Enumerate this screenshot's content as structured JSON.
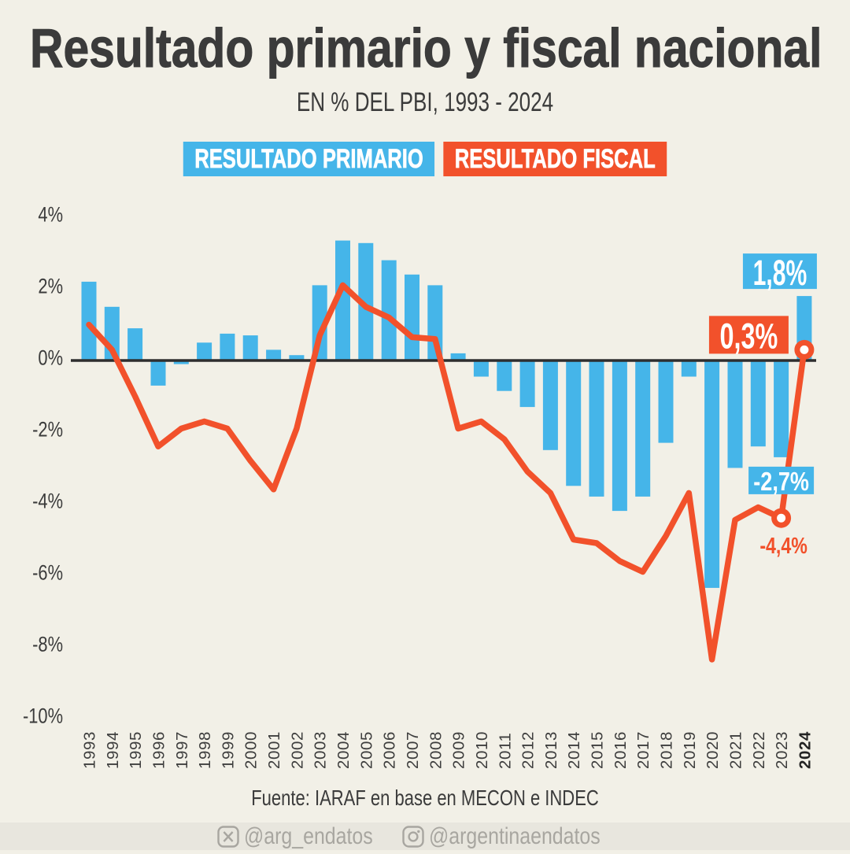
{
  "title": "Resultado primario y fiscal nacional",
  "subtitle": "EN % DEL PBI, 1993 - 2024",
  "legend": {
    "primario": "RESULTADO PRIMARIO",
    "fiscal": "RESULTADO FISCAL"
  },
  "chart_data": {
    "type": "bar+line",
    "categories": [
      1993,
      1994,
      1995,
      1996,
      1997,
      1998,
      1999,
      2000,
      2001,
      2002,
      2003,
      2004,
      2005,
      2006,
      2007,
      2008,
      2009,
      2010,
      2011,
      2012,
      2013,
      2014,
      2015,
      2016,
      2017,
      2018,
      2019,
      2020,
      2021,
      2022,
      2023,
      2024
    ],
    "series": [
      {
        "name": "RESULTADO PRIMARIO",
        "type": "bar",
        "color": "#45B5E9",
        "values": [
          2.2,
          1.5,
          0.9,
          -0.7,
          -0.1,
          0.5,
          0.75,
          0.7,
          0.3,
          0.15,
          2.1,
          3.35,
          3.28,
          2.8,
          2.4,
          2.1,
          0.2,
          -0.45,
          -0.85,
          -1.3,
          -2.5,
          -3.5,
          -3.8,
          -4.2,
          -3.8,
          -2.3,
          -0.45,
          -6.35,
          -3.0,
          -2.4,
          -2.7,
          1.8
        ]
      },
      {
        "name": "RESULTADO FISCAL",
        "type": "line",
        "color": "#F2512B",
        "values": [
          1.0,
          0.3,
          -1.0,
          -2.4,
          -1.9,
          -1.7,
          -1.9,
          -2.8,
          -3.6,
          -1.9,
          0.7,
          2.1,
          1.5,
          1.2,
          0.65,
          0.6,
          -1.9,
          -1.7,
          -2.2,
          -3.1,
          -3.7,
          -5.0,
          -5.1,
          -5.6,
          -5.9,
          -4.9,
          -3.7,
          -8.35,
          -4.45,
          -4.1,
          -4.4,
          0.3
        ]
      }
    ],
    "ytick_labels": [
      "4%",
      "2%",
      "0%",
      "-2%",
      "-4%",
      "-6%",
      "-8%",
      "-10%"
    ],
    "ytick_values": [
      4,
      2,
      0,
      -2,
      -4,
      -6,
      -8,
      -10
    ],
    "ylim": [
      -10.5,
      4.5
    ],
    "grid": false,
    "annotations": [
      {
        "label": "1,8%",
        "series": "primario",
        "year": 2024,
        "style": "box-blue"
      },
      {
        "label": "0,3%",
        "series": "fiscal",
        "year": 2024,
        "style": "box-orange"
      },
      {
        "label": "-2,7%",
        "series": "primario",
        "year": 2023,
        "style": "box-blue-small"
      },
      {
        "label": "-4,4%",
        "series": "fiscal",
        "year": 2023,
        "style": "text-orange"
      }
    ]
  },
  "source": "Fuente: IARAF en base en MECON e INDEC",
  "social": {
    "twitter": "@arg_endatos",
    "instagram": "@argentinaendatos"
  },
  "colors": {
    "background": "#F2F0E7",
    "strip": "#E8E6DE",
    "bar_blue": "#45B5E9",
    "line_orange": "#F2512B",
    "text_dark": "#3B3B3B",
    "axis_black": "#2E2E2E",
    "social_gray": "#A8A6A0"
  }
}
